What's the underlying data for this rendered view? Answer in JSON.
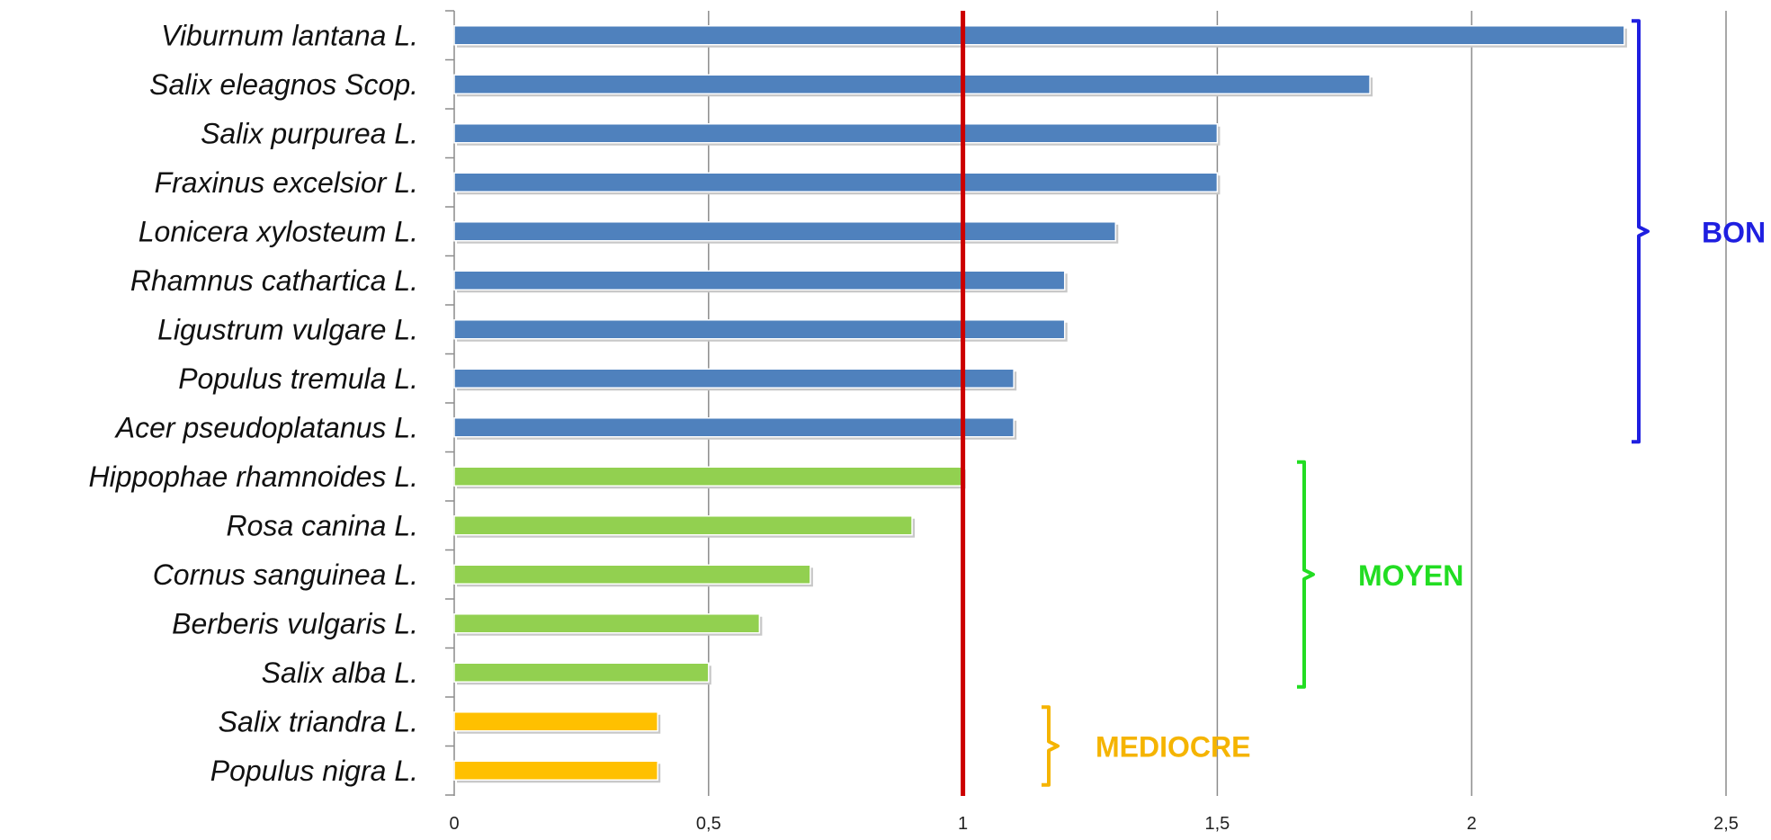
{
  "chart_data": {
    "type": "bar",
    "orientation": "horizontal",
    "title": "",
    "xlabel": "",
    "ylabel": "",
    "xlim": [
      0,
      2.5
    ],
    "x_ticks": [
      0,
      0.5,
      1,
      1.5,
      2,
      2.5
    ],
    "x_tick_labels": [
      "0",
      "0,5",
      "1",
      "1,5",
      "2",
      "2,5"
    ],
    "grid": "vertical",
    "reference_line": {
      "value": 1,
      "color": "#cc0000"
    },
    "categories": [
      "Viburnum lantana L.",
      "Salix eleagnos Scop.",
      "Salix purpurea L.",
      "Fraxinus excelsior L.",
      "Lonicera xylosteum L.",
      "Rhamnus cathartica L.",
      "Ligustrum vulgare L.",
      "Populus tremula L.",
      "Acer pseudoplatanus L.",
      "Hippophae rhamnoides L.",
      "Rosa canina L.",
      "Cornus sanguinea L.",
      "Berberis vulgaris L.",
      "Salix alba L.",
      "Salix triandra L.",
      "Populus nigra L."
    ],
    "values": [
      2.3,
      1.8,
      1.5,
      1.5,
      1.3,
      1.2,
      1.2,
      1.1,
      1.1,
      1.0,
      0.9,
      0.7,
      0.6,
      0.5,
      0.4,
      0.4
    ],
    "bar_groups": [
      "bon",
      "bon",
      "bon",
      "bon",
      "bon",
      "bon",
      "bon",
      "bon",
      "bon",
      "moyen",
      "moyen",
      "moyen",
      "moyen",
      "moyen",
      "mediocre",
      "mediocre"
    ],
    "groups": [
      {
        "id": "bon",
        "label": "BON",
        "color": "#4f81bd",
        "label_color": "#1f1fe0",
        "first": 0,
        "last": 8
      },
      {
        "id": "moyen",
        "label": "MOYEN",
        "color": "#92d050",
        "label_color": "#22dd22",
        "first": 9,
        "last": 13
      },
      {
        "id": "mediocre",
        "label": "MEDIOCRE",
        "color": "#ffc000",
        "label_color": "#f5b400",
        "first": 14,
        "last": 15
      }
    ]
  }
}
